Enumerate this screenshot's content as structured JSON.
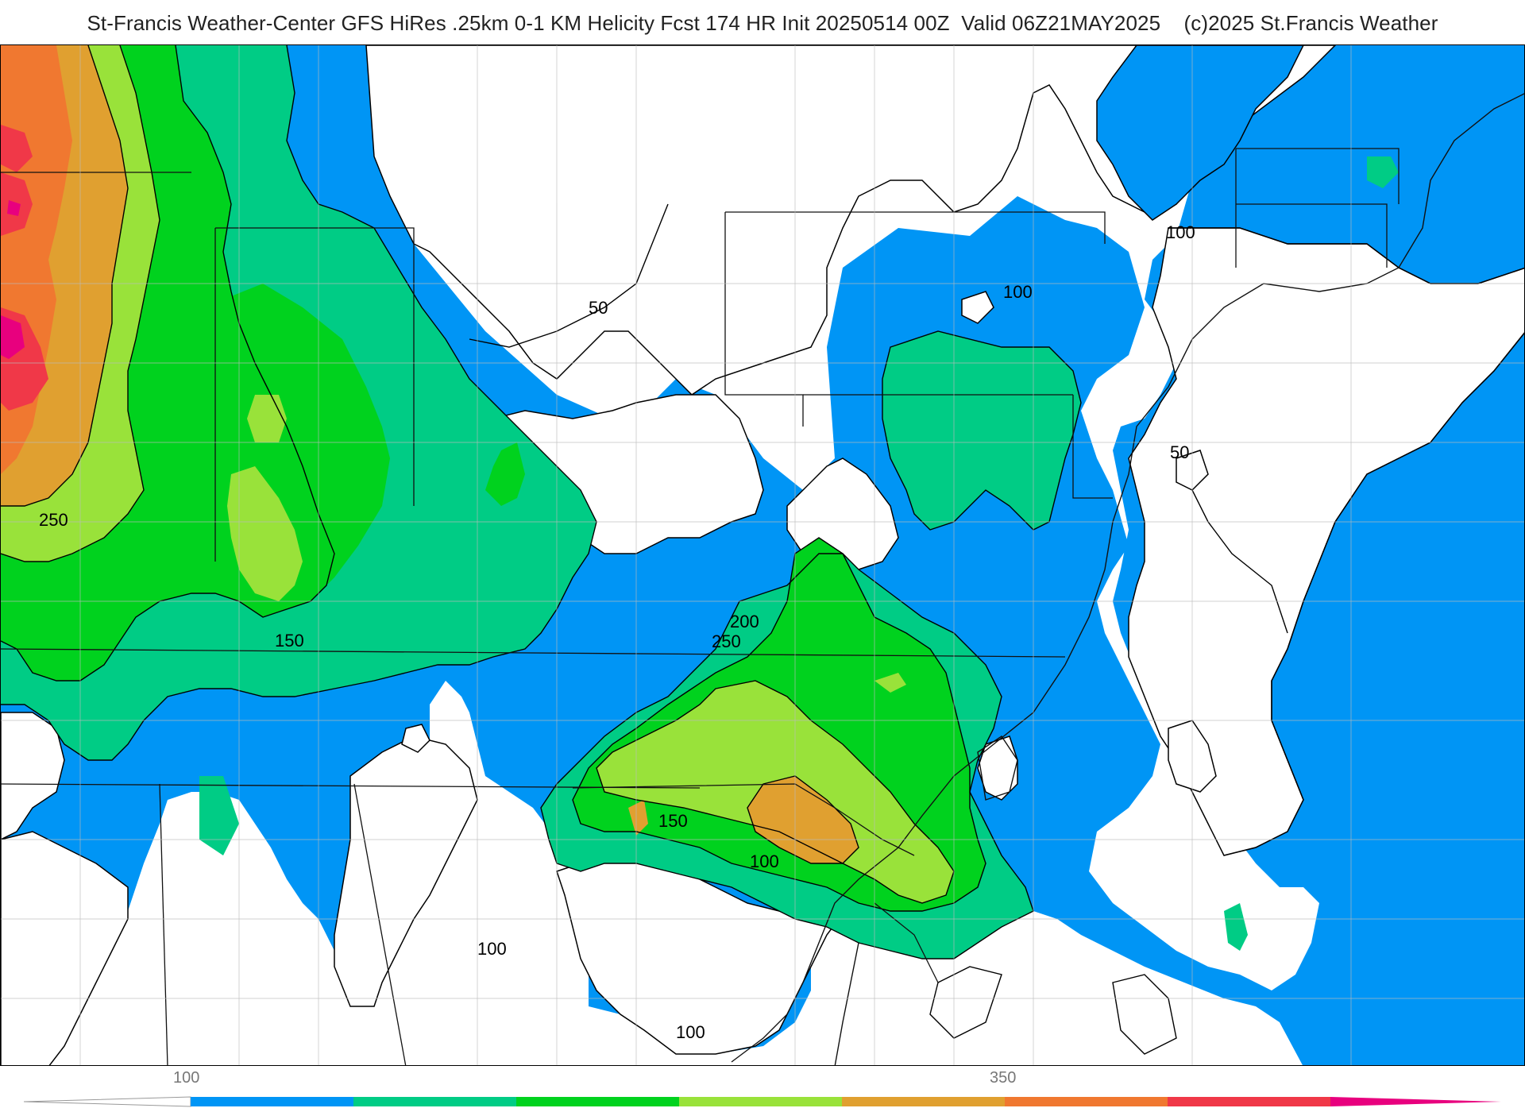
{
  "title": {
    "main": "St-Francis Weather-Center GFS HiRes .25km 0-1 KM Helicity Fcst 174 HR Init 20250514 00Z  Valid 06Z21MAY2025",
    "copyright": "(c)2025 St.Francis Weather"
  },
  "map": {
    "field": "0-1 KM Helicity",
    "contour_labels": [
      "250",
      "150",
      "200",
      "250",
      "150",
      "100",
      "100",
      "100",
      "50",
      "100",
      "100",
      "50"
    ],
    "colors": {
      "c100": "#0095f5",
      "c150": "#00cc85",
      "c200": "#00d21e",
      "c250": "#99e23a",
      "c300": "#e0a030",
      "c350": "#f07830",
      "c400": "#f03848",
      "c450": "#e8007e"
    }
  },
  "legend": {
    "tick_labels": [
      "100",
      "350"
    ],
    "colors": [
      "#0095f5",
      "#00cc85",
      "#00d21e",
      "#99e23a",
      "#e0a030",
      "#f07830",
      "#f03848",
      "#e8007e"
    ]
  }
}
